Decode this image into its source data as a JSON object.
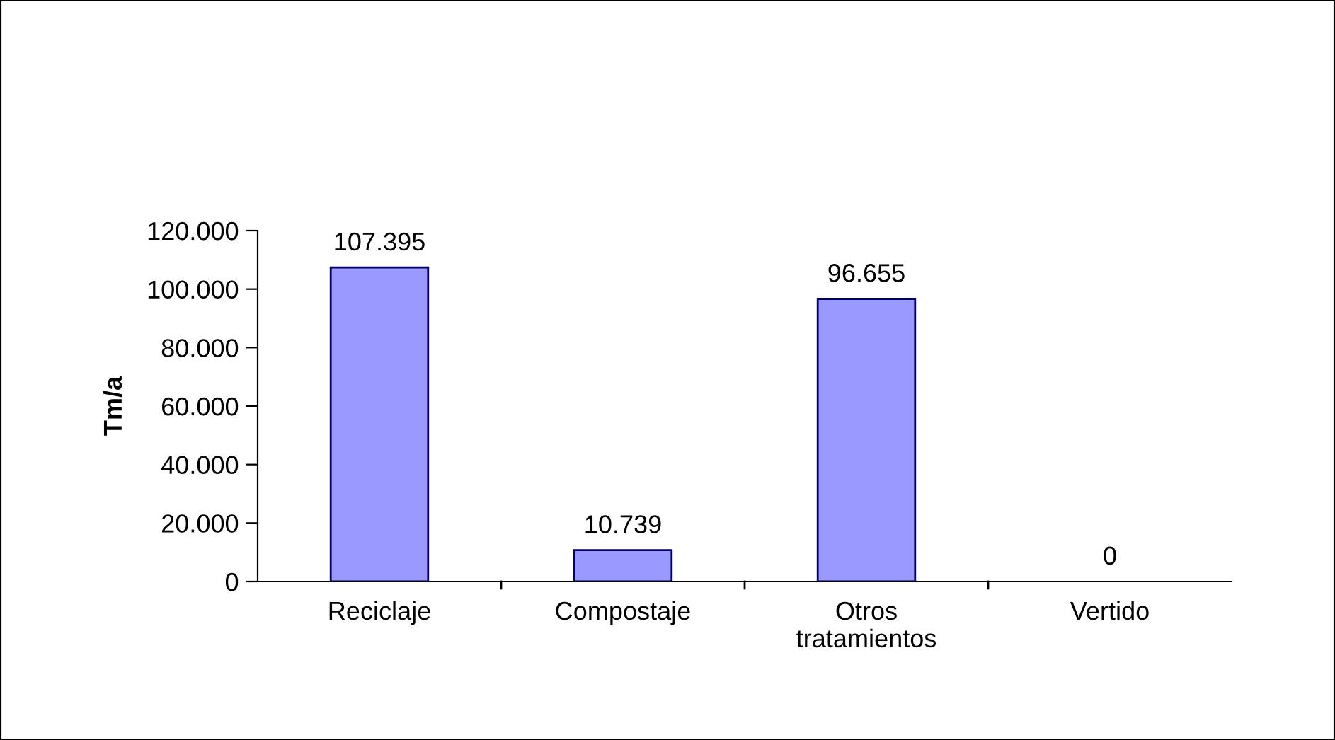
{
  "chart_data": {
    "type": "bar",
    "ylabel": "Tm/a",
    "categories": [
      "Reciclaje",
      "Compostaje",
      "Otros\ntratamientos",
      "Vertido"
    ],
    "values": [
      107395,
      10739,
      96655,
      0
    ],
    "value_labels": [
      "107.395",
      "10.739",
      "96.655",
      "0"
    ],
    "color": "#9999ff",
    "ylim": [
      0,
      120000
    ],
    "yticks": [
      0,
      {
        "value": 20000,
        "label": "20.000"
      },
      {
        "value": 40000,
        "label": "40.000"
      },
      {
        "value": 60000,
        "label": "60.000"
      },
      {
        "value": 80000,
        "label": "80.000"
      },
      {
        "value": 100000,
        "label": "100.000"
      },
      {
        "value": 120000,
        "label": "120.000"
      }
    ],
    "grid": false,
    "legend": false
  }
}
